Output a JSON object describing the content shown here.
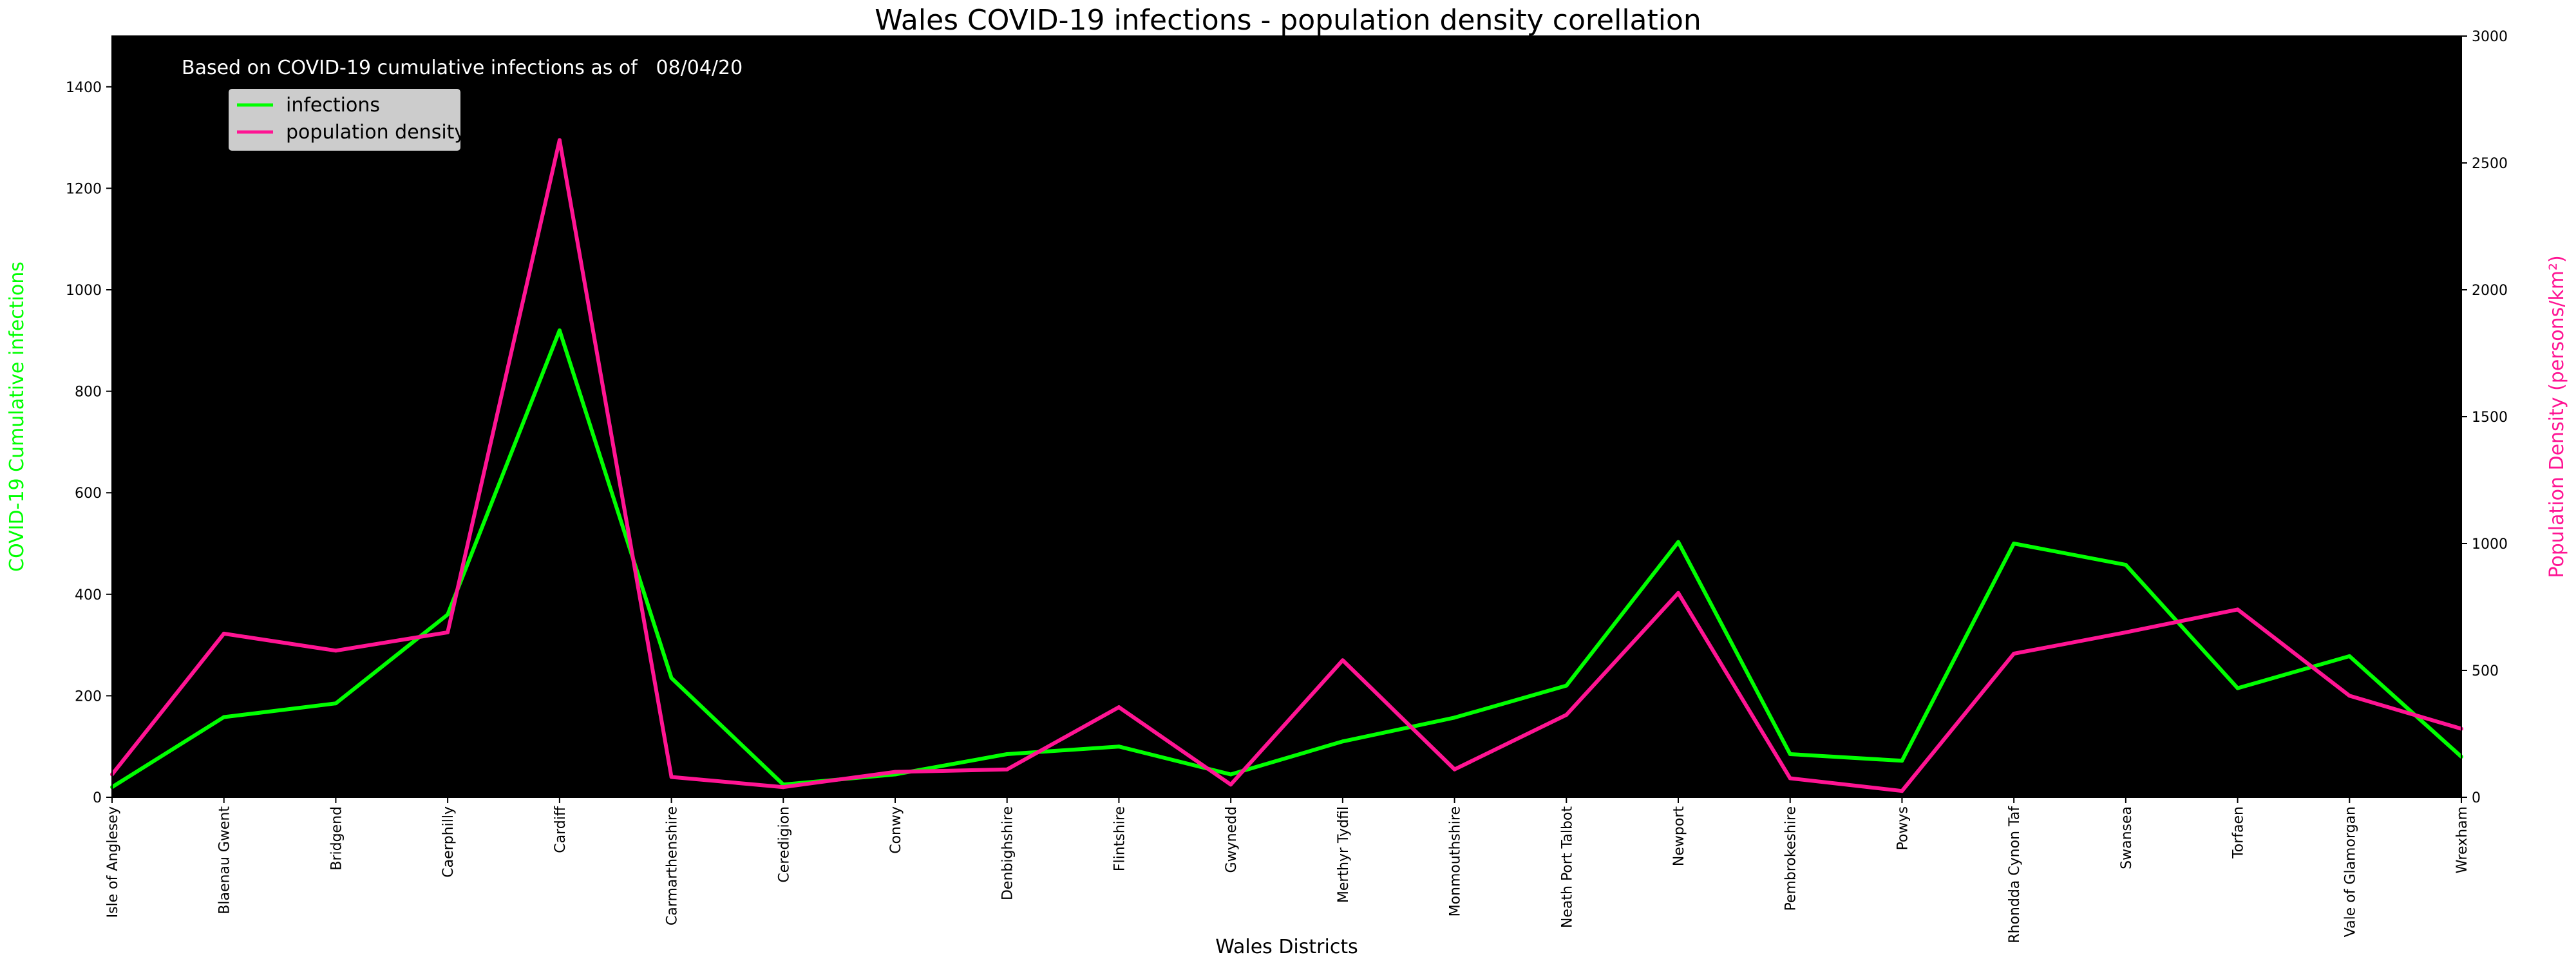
{
  "chart_data": {
    "type": "line",
    "title": "Wales COVID-19 infections - population density corellation",
    "annotation": "Based on COVID-19 cumulative infections as of   08/04/20",
    "xlabel": "Wales Districts",
    "ylabel_left": "COVID-19 Cumulative infections",
    "ylabel_right": "Population Density (persons/km²)",
    "ylim_left": [
      0,
      1500
    ],
    "ylim_right": [
      0,
      3000
    ],
    "yticks_left": [
      0,
      200,
      400,
      600,
      800,
      1000,
      1200,
      1400
    ],
    "yticks_right": [
      0,
      500,
      1000,
      1500,
      2000,
      2500,
      3000
    ],
    "grid": false,
    "background": "#000000",
    "legend_position": "top-left",
    "categories": [
      "Isle of Anglesey",
      "Blaenau Gwent",
      "Bridgend",
      "Caerphilly",
      "Cardiff",
      "Carmarthenshire",
      "Ceredigion",
      "Conwy",
      "Denbighshire",
      "Flintshire",
      "Gwynedd",
      "Merthyr Tydfil",
      "Monmouthshire",
      "Neath Port Talbot",
      "Newport",
      "Pembrokeshire",
      "Powys",
      "Rhondda Cynon Taf",
      "Swansea",
      "Torfaen",
      "Vale of Glamorgan",
      "Wrexham"
    ],
    "series": [
      {
        "name": "infections",
        "axis": "left",
        "color": "#00ff00",
        "values": [
          20,
          158,
          185,
          360,
          920,
          235,
          25,
          45,
          85,
          100,
          45,
          110,
          157,
          220,
          503,
          85,
          72,
          500,
          458,
          215,
          278,
          80
        ]
      },
      {
        "name": "population density",
        "axis": "right",
        "color": "#ff1493",
        "values": [
          90,
          645,
          578,
          650,
          2590,
          80,
          40,
          100,
          110,
          355,
          50,
          540,
          110,
          325,
          805,
          75,
          25,
          566,
          650,
          740,
          400,
          270
        ]
      }
    ]
  }
}
